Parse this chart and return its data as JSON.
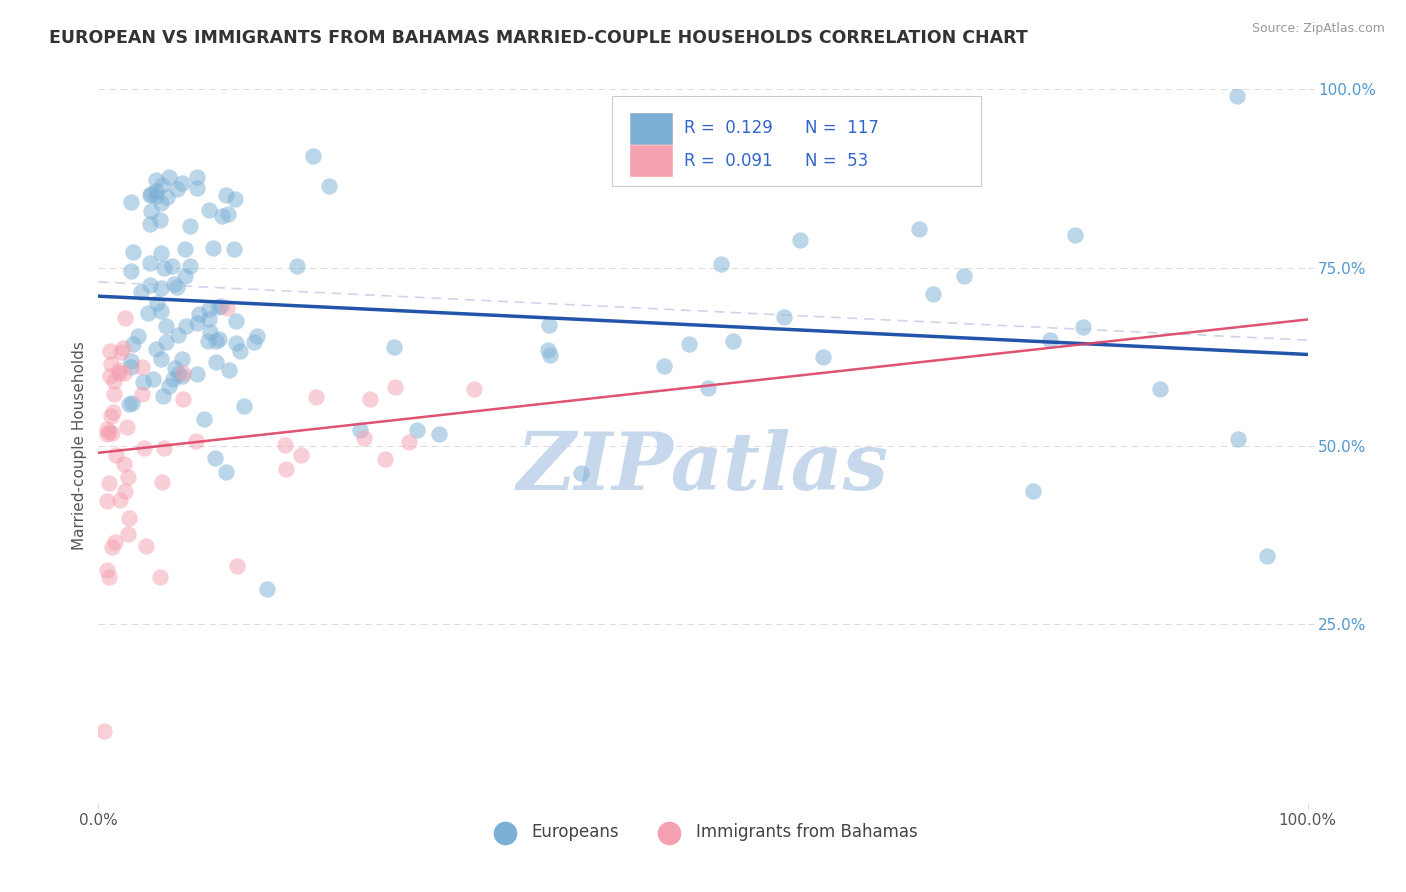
{
  "title": "EUROPEAN VS IMMIGRANTS FROM BAHAMAS MARRIED-COUPLE HOUSEHOLDS CORRELATION CHART",
  "source": "Source: ZipAtlas.com",
  "ylabel": "Married-couple Households",
  "xlim": [
    0,
    1
  ],
  "ylim": [
    0,
    1
  ],
  "legend_labels": [
    "Europeans",
    "Immigrants from Bahamas"
  ],
  "R_european": 0.129,
  "N_european": 117,
  "R_bahamas": 0.091,
  "N_bahamas": 53,
  "blue_color": "#7BAFD4",
  "pink_color": "#F4A0B0",
  "blue_line_color": "#2255AA",
  "pink_line_color": "#DD4466",
  "blue_dash_color": "#AABBDD",
  "pink_dash_color": "#FFAACC",
  "watermark_color": "#C8D8EC",
  "background_color": "#FFFFFF",
  "grid_color": "#DDDDDD",
  "title_color": "#333333",
  "ylabel_color": "#555555",
  "tick_color": "#555555",
  "right_tick_color": "#5599CC",
  "source_color": "#999999"
}
